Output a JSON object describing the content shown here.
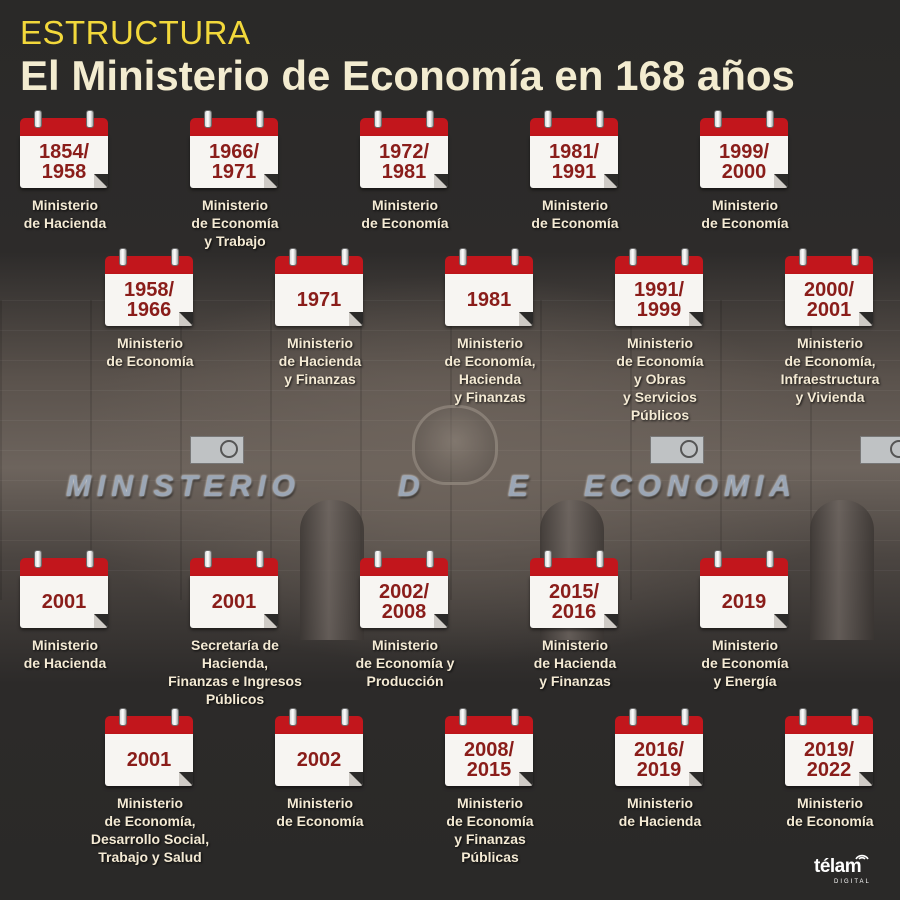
{
  "header": {
    "kicker": "ESTRUCTURA",
    "title": "El Ministerio de Economía en 168 años"
  },
  "background": {
    "sign_left": "MINISTERIO",
    "sign_mid": "D E",
    "sign_right": "ECONOMIA"
  },
  "entries": [
    {
      "period": "1854/\n1958",
      "name": "Ministerio\nde Hacienda"
    },
    {
      "period": "1966/\n1971",
      "name": "Ministerio\nde Economía\ny Trabajo"
    },
    {
      "period": "1972/\n1981",
      "name": "Ministerio\nde Economía"
    },
    {
      "period": "1981/\n1991",
      "name": "Ministerio\nde Economía"
    },
    {
      "period": "1999/\n2000",
      "name": "Ministerio\nde Economía"
    },
    {
      "period": "1958/\n1966",
      "name": "Ministerio\nde Economía"
    },
    {
      "period": "1971",
      "name": "Ministerio\nde Hacienda\ny Finanzas"
    },
    {
      "period": "1981",
      "name": "Ministerio\nde Economía,\nHacienda\ny Finanzas"
    },
    {
      "period": "1991/\n1999",
      "name": "Ministerio\nde Economía\ny Obras\ny Servicios\nPúblicos"
    },
    {
      "period": "2000/\n2001",
      "name": "Ministerio\nde Economía,\nInfraestructura\ny Vivienda"
    },
    {
      "period": "2001",
      "name": "Ministerio\nde Hacienda"
    },
    {
      "period": "2001",
      "name": "Secretaría de\nHacienda,\nFinanzas e Ingresos\nPúblicos"
    },
    {
      "period": "2002/\n2008",
      "name": "Ministerio\nde Economía y\nProducción"
    },
    {
      "period": "2015/\n2016",
      "name": "Ministerio\nde Hacienda\ny Finanzas"
    },
    {
      "period": "2019",
      "name": "Ministerio\nde Economía\ny Energía"
    },
    {
      "period": "2001",
      "name": "Ministerio\nde Economía,\nDesarrollo Social,\nTrabajo y Salud"
    },
    {
      "period": "2002",
      "name": "Ministerio\nde Economía"
    },
    {
      "period": "2008/\n2015",
      "name": "Ministerio\nde Economía\ny Finanzas\nPúblicas"
    },
    {
      "period": "2016/\n2019",
      "name": "Ministerio\nde Hacienda"
    },
    {
      "period": "2019/\n2022",
      "name": "Ministerio\nde Economía"
    }
  ],
  "logo": {
    "word": "télam",
    "sub": "DIGITAL"
  },
  "colors": {
    "kicker": "#f2d83b",
    "title": "#f3ecd0",
    "calendar_red": "#c2161c",
    "calendar_text": "#8a1d1a",
    "label": "#f4ead4"
  }
}
